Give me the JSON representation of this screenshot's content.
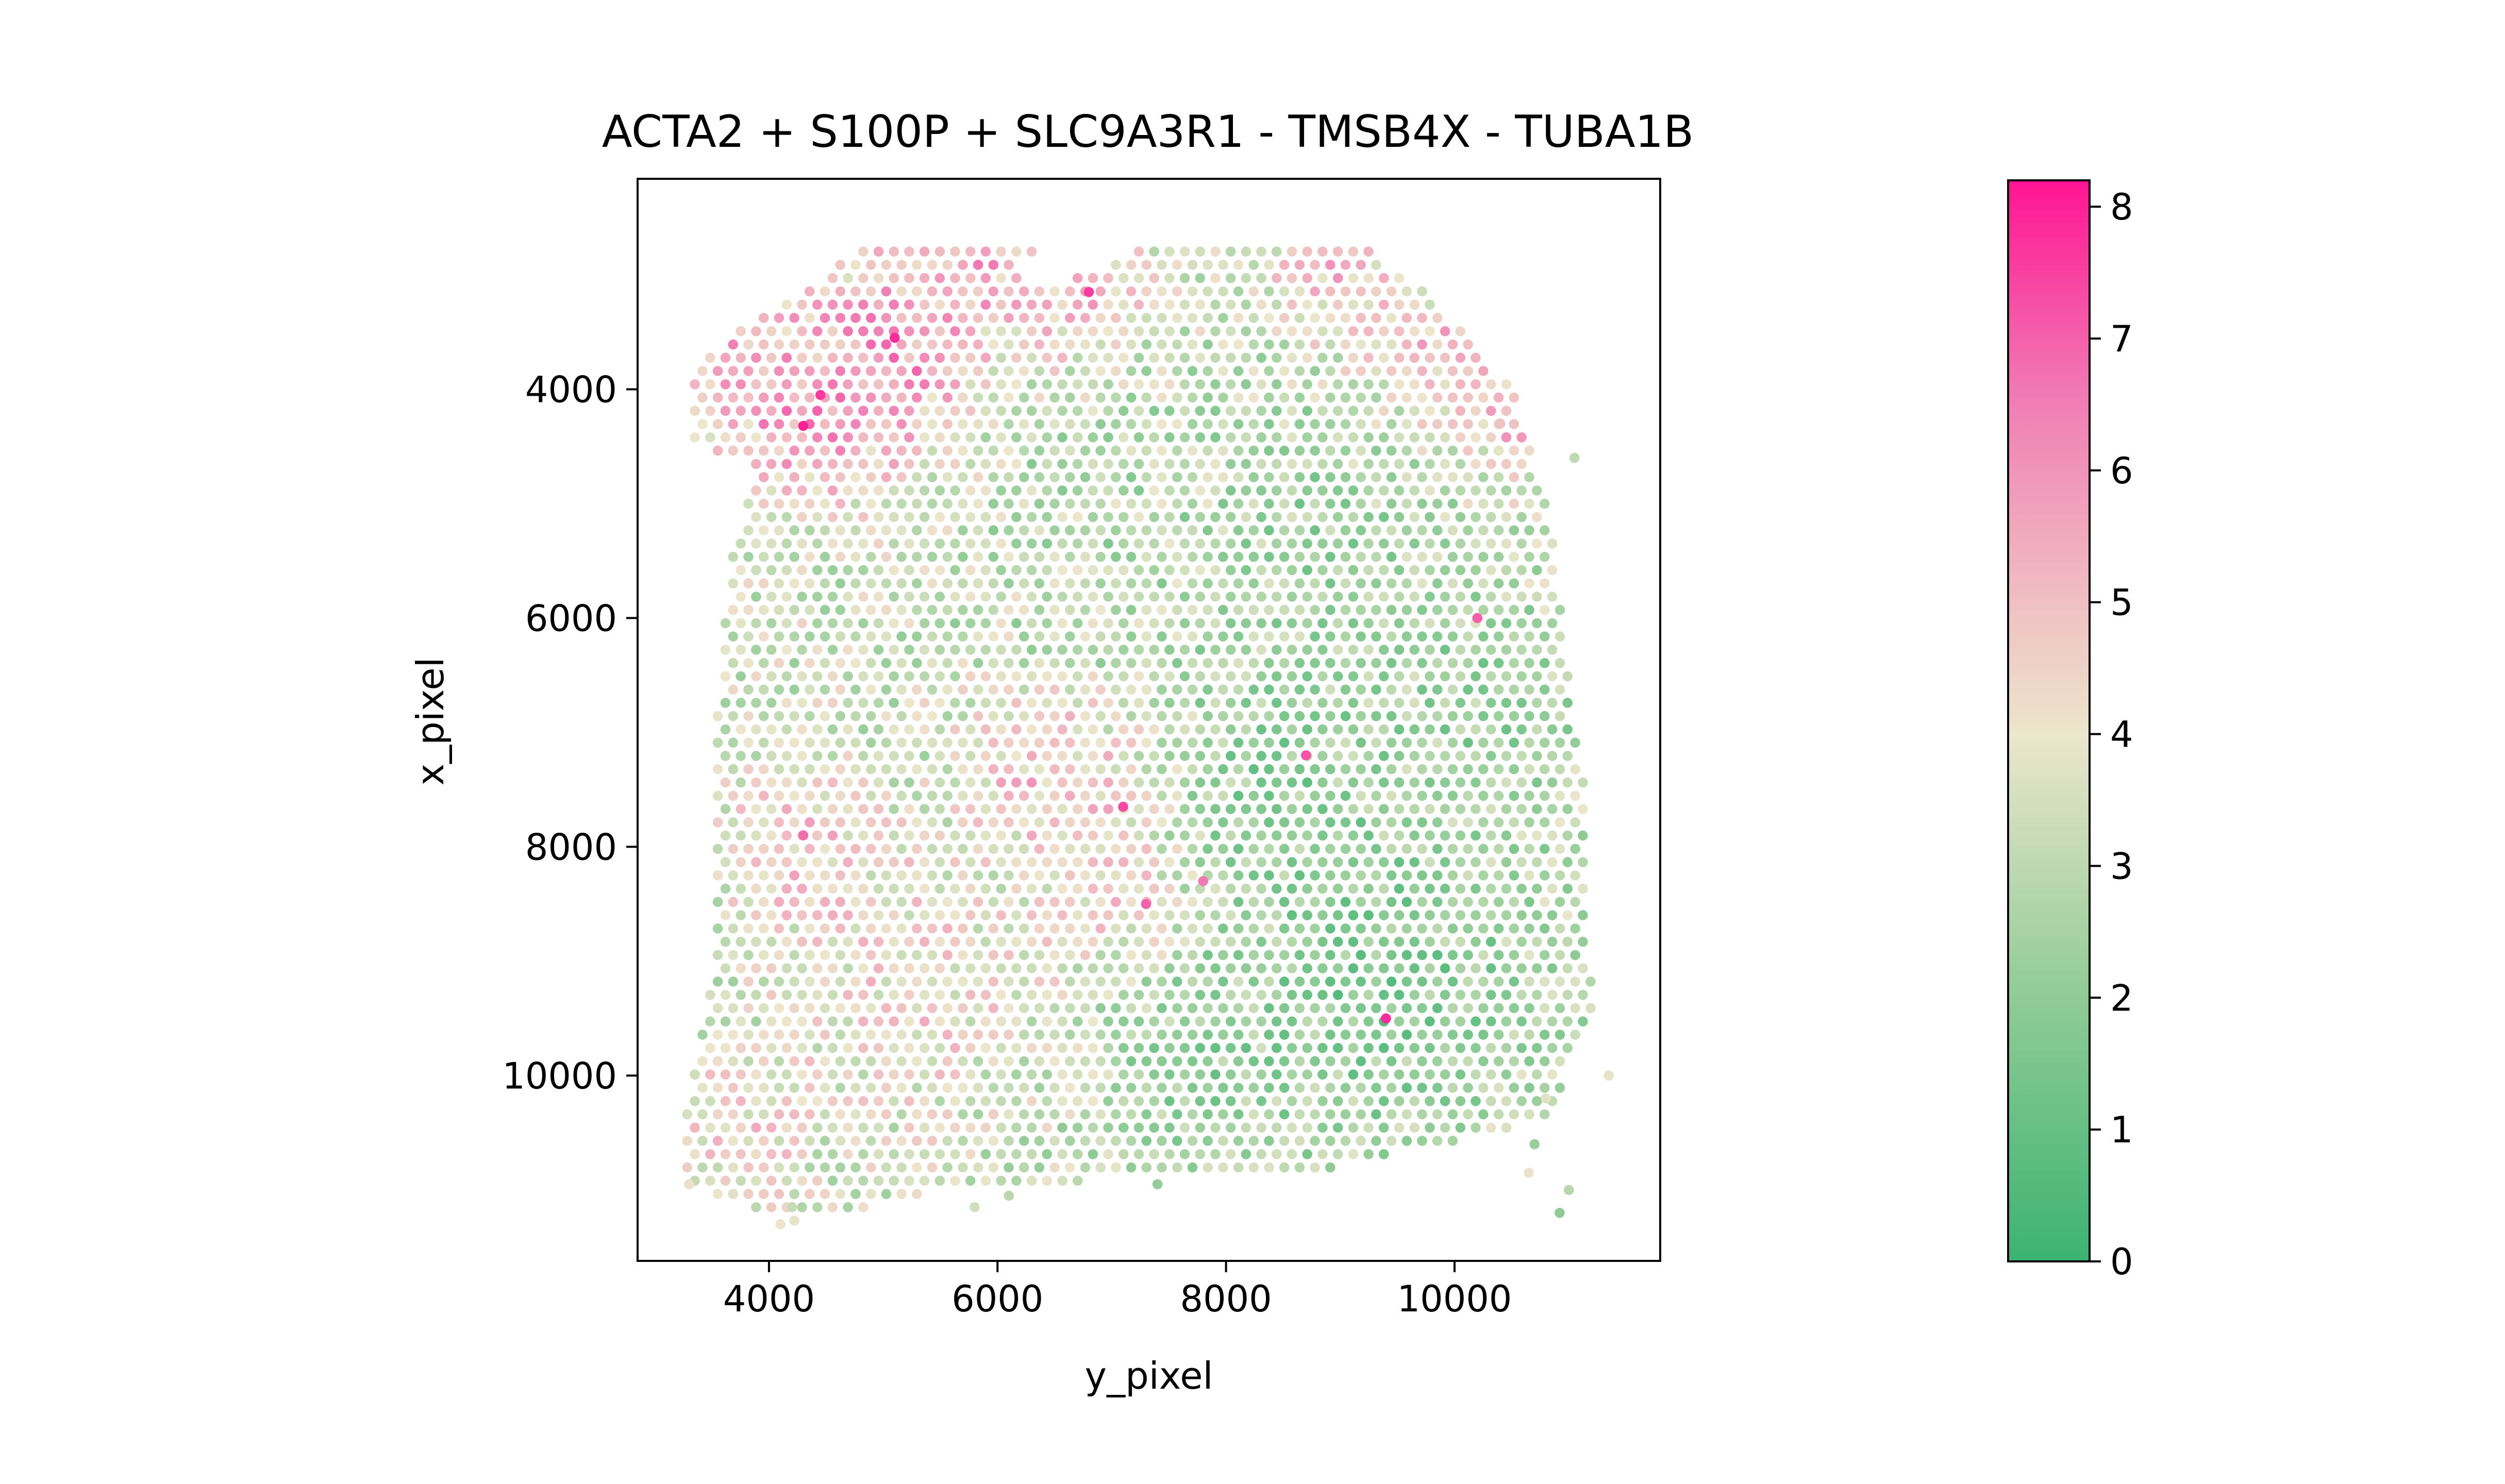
{
  "chart_data": {
    "type": "scatter",
    "title": "ACTA2 + S100P + SLC9A3R1 - TMSB4X - TUBA1B",
    "xlabel": "y_pixel",
    "ylabel": "x_pixel",
    "xlim": [
      2850,
      11800
    ],
    "ylim": [
      11620,
      2160
    ],
    "y_inverted": true,
    "xticks": [
      4000,
      6000,
      8000,
      10000
    ],
    "yticks": [
      4000,
      6000,
      8000,
      10000
    ],
    "grid": false,
    "point_radius_data_units": 44,
    "spot_spacing_data_units": 134,
    "colorbar": {
      "min": 0,
      "max": 8.2,
      "ticks": [
        0,
        1,
        2,
        3,
        4,
        5,
        6,
        7,
        8
      ],
      "colors": [
        [
          0,
          "#3cb371"
        ],
        [
          0.25,
          "#92cc98"
        ],
        [
          0.488,
          "#ece6cc"
        ],
        [
          0.62,
          "#f0bcc2"
        ],
        [
          0.8,
          "#f07cb4"
        ],
        [
          1,
          "#ff1493"
        ]
      ]
    },
    "tissue_outline": [
      [
        3200,
        10900
      ],
      [
        3300,
        10050
      ],
      [
        3500,
        9000
      ],
      [
        3550,
        7800
      ],
      [
        3550,
        6800
      ],
      [
        3650,
        5500
      ],
      [
        3900,
        4700
      ],
      [
        3350,
        4500
      ],
      [
        3350,
        3900
      ],
      [
        3650,
        3500
      ],
      [
        4300,
        3150
      ],
      [
        4900,
        2700
      ],
      [
        6450,
        2700
      ],
      [
        6100,
        3000
      ],
      [
        6500,
        3100
      ],
      [
        7400,
        2700
      ],
      [
        9200,
        2700
      ],
      [
        9900,
        3300
      ],
      [
        10500,
        4000
      ],
      [
        10800,
        4900
      ],
      [
        11000,
        6500
      ],
      [
        11150,
        7500
      ],
      [
        11200,
        9500
      ],
      [
        10800,
        10400
      ],
      [
        9000,
        10800
      ],
      [
        7000,
        10900
      ],
      [
        5500,
        11000
      ],
      [
        4200,
        11300
      ]
    ],
    "regions": [
      {
        "center": [
          5100,
          3800
        ],
        "radius": 700,
        "mean": 6.4
      },
      {
        "center": [
          4300,
          4250
        ],
        "radius": 500,
        "mean": 6.0
      },
      {
        "center": [
          5800,
          2950
        ],
        "radius": 500,
        "mean": 5.6
      },
      {
        "center": [
          6700,
          3200
        ],
        "radius": 450,
        "mean": 5.6
      },
      {
        "center": [
          3800,
          3700
        ],
        "radius": 350,
        "mean": 5.6
      },
      {
        "center": [
          7150,
          8300
        ],
        "radius": 500,
        "mean": 5.8
      },
      {
        "center": [
          7100,
          7550
        ],
        "radius": 400,
        "mean": 5.6
      },
      {
        "center": [
          6400,
          7300
        ],
        "radius": 500,
        "mean": 5.3
      },
      {
        "center": [
          4300,
          8000
        ],
        "radius": 500,
        "mean": 5.0
      },
      {
        "center": [
          5300,
          9200
        ],
        "radius": 900,
        "mean": 4.4
      },
      {
        "center": [
          3700,
          10500
        ],
        "radius": 500,
        "mean": 4.5
      },
      {
        "center": [
          8900,
          3000
        ],
        "radius": 400,
        "mean": 5.0
      },
      {
        "center": [
          9900,
          3700
        ],
        "radius": 500,
        "mean": 5.0
      },
      {
        "center": [
          10600,
          4300
        ],
        "radius": 350,
        "mean": 5.3
      },
      {
        "center": [
          4200,
          6200
        ],
        "radius": 700,
        "mean": 3.4
      },
      {
        "center": [
          9300,
          9200
        ],
        "radius": 1000,
        "mean": 1.6
      },
      {
        "center": [
          8500,
          7500
        ],
        "radius": 900,
        "mean": 2.0
      },
      {
        "center": [
          8700,
          5300
        ],
        "radius": 800,
        "mean": 2.3
      },
      {
        "center": [
          7800,
          10100
        ],
        "radius": 700,
        "mean": 2.2
      },
      {
        "center": [
          10200,
          6800
        ],
        "radius": 700,
        "mean": 2.2
      },
      {
        "center": [
          6700,
          5000
        ],
        "radius": 900,
        "mean": 2.8
      }
    ],
    "base_value": 3.2,
    "hotspots": [
      [
        4300,
        4320,
        8.0
      ],
      [
        4450,
        4050,
        7.6
      ],
      [
        5100,
        3550,
        7.8
      ],
      [
        6800,
        3150,
        7.6
      ],
      [
        7100,
        7650,
        7.4
      ],
      [
        8700,
        7200,
        7.2
      ],
      [
        9400,
        9500,
        7.8
      ],
      [
        10200,
        6000,
        7.0
      ],
      [
        4300,
        7900,
        6.8
      ],
      [
        7800,
        8300,
        6.6
      ],
      [
        7300,
        8500,
        7.0
      ]
    ],
    "outliers": [
      [
        11050,
        4600
      ],
      [
        11350,
        10000
      ],
      [
        10800,
        10200
      ],
      [
        10700,
        10600
      ],
      [
        10650,
        10850
      ],
      [
        11000,
        11000
      ],
      [
        10920,
        11200
      ],
      [
        4100,
        11300
      ],
      [
        4200,
        11150
      ],
      [
        5800,
        11150
      ],
      [
        6100,
        11050
      ],
      [
        7400,
        10950
      ],
      [
        3300,
        10950
      ],
      [
        10400,
        4300
      ]
    ]
  }
}
